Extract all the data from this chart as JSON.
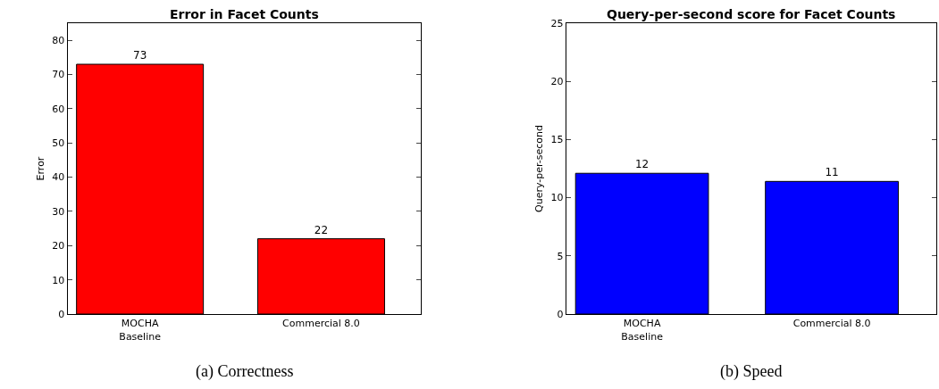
{
  "chart_data": [
    {
      "type": "bar",
      "title": "Error in Facet Counts",
      "ylabel": "Error",
      "categories": [
        "MOCHA\nBaseline",
        "Commercial 8.0"
      ],
      "values": [
        73,
        22
      ],
      "color": "#ff0000",
      "ylim": [
        0,
        85
      ],
      "yticks": [
        0,
        10,
        20,
        30,
        40,
        50,
        60,
        70,
        80
      ],
      "data_labels": true,
      "annotations": [
        "(a) Correctness"
      ]
    },
    {
      "type": "bar",
      "title": "Query-per-second score for Facet Counts",
      "ylabel": "Query-per-second",
      "categories": [
        "MOCHA\nBaseline",
        "Commercial 8.0"
      ],
      "values": [
        12.1,
        11.4
      ],
      "value_labels": [
        "12",
        "11"
      ],
      "color": "#0000ff",
      "ylim": [
        0,
        25
      ],
      "yticks": [
        0,
        5,
        10,
        15,
        20,
        25
      ],
      "annotations": [
        "(b) Speed"
      ]
    }
  ]
}
